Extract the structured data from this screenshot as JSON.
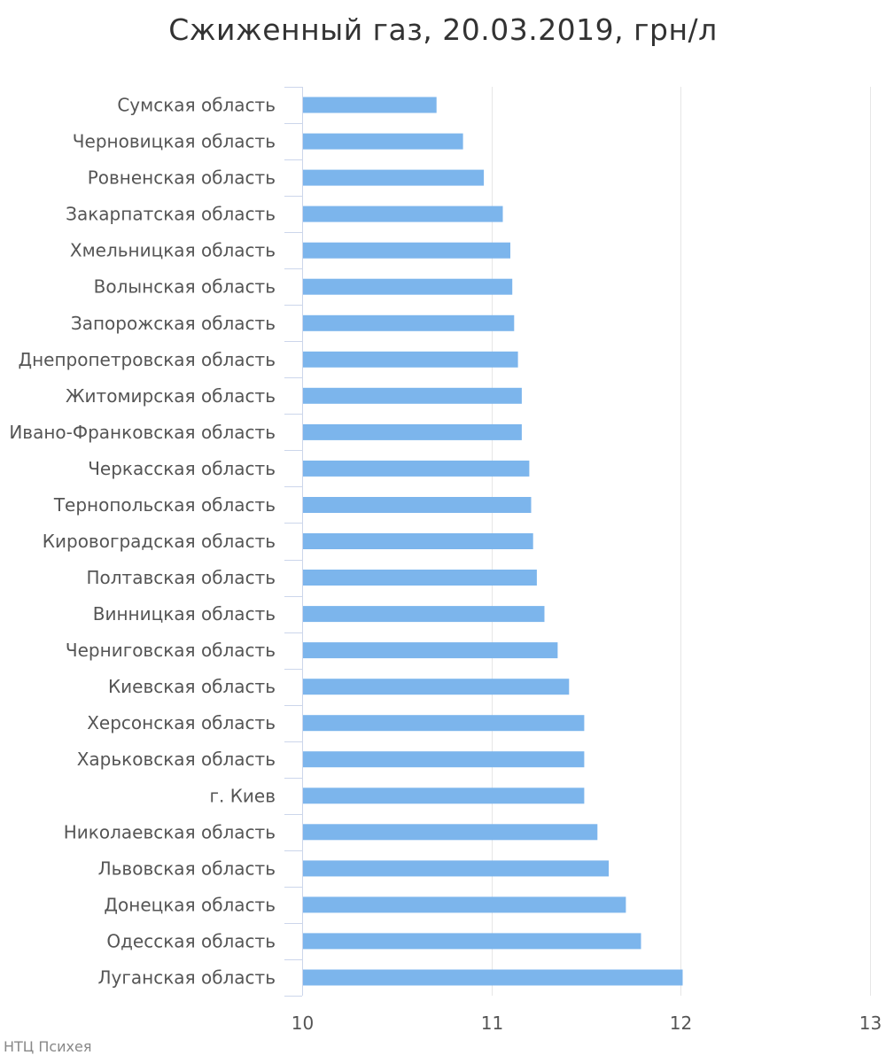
{
  "chart_data": {
    "type": "bar",
    "orientation": "horizontal",
    "title": "Сжиженный газ, 20.03.2019, грн/л",
    "xlabel": "",
    "ylabel": "",
    "xlim": [
      10,
      13
    ],
    "xticks": [
      10,
      11,
      12,
      13
    ],
    "grid": true,
    "bar_color": "#7cb5ec",
    "categories": [
      "Сумская область",
      "Черновицкая область",
      "Ровненская область",
      "Закарпатская область",
      "Хмельницкая область",
      "Волынская область",
      "Запорожская область",
      "Днепропетровская область",
      "Житомирская область",
      "Ивано-Франковская область",
      "Черкасская область",
      "Тернопольская область",
      "Кировоградская область",
      "Полтавская область",
      "Винницкая область",
      "Черниговская область",
      "Киевская область",
      "Херсонская область",
      "Харьковская область",
      "г. Киев",
      "Николаевская область",
      "Львовская область",
      "Донецкая область",
      "Одесская область",
      "Луганская область"
    ],
    "values": [
      10.71,
      10.85,
      10.96,
      11.06,
      11.1,
      11.11,
      11.12,
      11.14,
      11.16,
      11.16,
      11.2,
      11.21,
      11.22,
      11.24,
      11.28,
      11.35,
      11.41,
      11.49,
      11.49,
      11.49,
      11.56,
      11.62,
      11.71,
      11.79,
      12.01
    ]
  },
  "credit": "НТЦ Психея"
}
